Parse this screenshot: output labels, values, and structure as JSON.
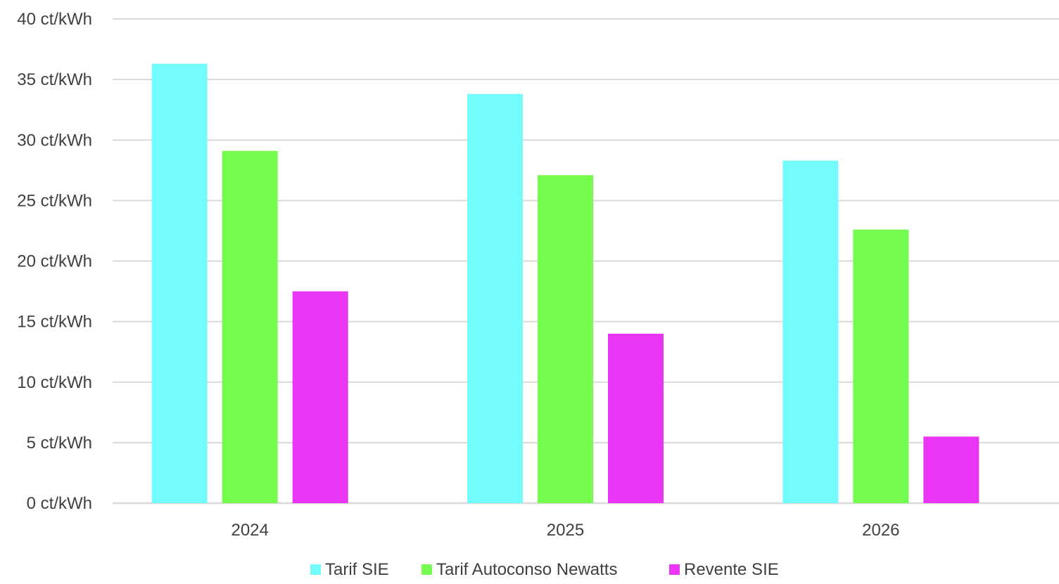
{
  "chart_data": {
    "type": "bar",
    "categories": [
      "2024",
      "2025",
      "2026"
    ],
    "series": [
      {
        "name": "Tarif SIE",
        "values": [
          36.3,
          33.8,
          28.3
        ],
        "color": "#74fbfb"
      },
      {
        "name": "Tarif Autoconso Newatts",
        "values": [
          29.1,
          27.1,
          22.6
        ],
        "color": "#76fb4f"
      },
      {
        "name": "Revente SIE",
        "values": [
          17.5,
          14.0,
          5.5
        ],
        "color": "#ea34f6"
      }
    ],
    "ylim": [
      0,
      40
    ],
    "y_ticks": [
      0,
      5,
      10,
      15,
      20,
      25,
      30,
      35,
      40
    ],
    "y_tick_labels": [
      "0 ct/kWh",
      "5 ct/kWh",
      "10 ct/kWh",
      "15 ct/kWh",
      "20 ct/kWh",
      "25 ct/kWh",
      "30 ct/kWh",
      "35 ct/kWh",
      "40 ct/kWh"
    ],
    "grid": true,
    "gridline_color": "#d9d9d9",
    "legend_position": "bottom"
  }
}
